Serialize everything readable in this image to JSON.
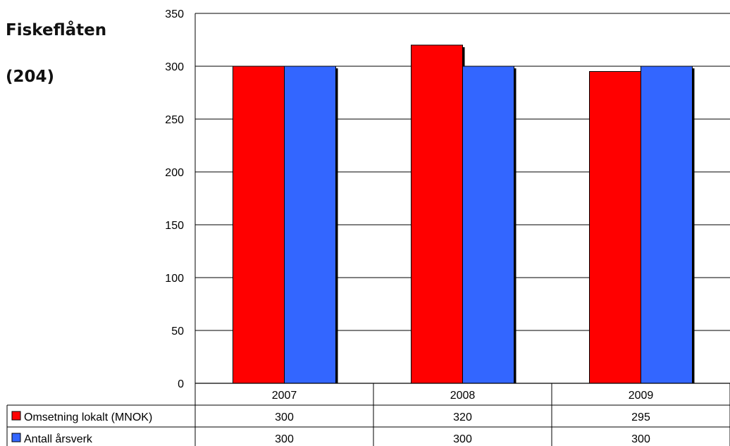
{
  "title": "Fiskeflåten",
  "subtitle": "(204)",
  "chart_data": {
    "type": "bar",
    "categories": [
      "2007",
      "2008",
      "2009"
    ],
    "ylim": [
      0,
      350
    ],
    "yticks": [
      0,
      50,
      100,
      150,
      200,
      250,
      300,
      350
    ],
    "grid": true,
    "legend": "data-table",
    "series": [
      {
        "name": "Omsetning lokalt (MNOK)",
        "color": "#ff0000",
        "values": [
          300,
          320,
          295
        ]
      },
      {
        "name": "Antall årsverk",
        "color": "#3366ff",
        "values": [
          300,
          300,
          300
        ]
      }
    ]
  }
}
